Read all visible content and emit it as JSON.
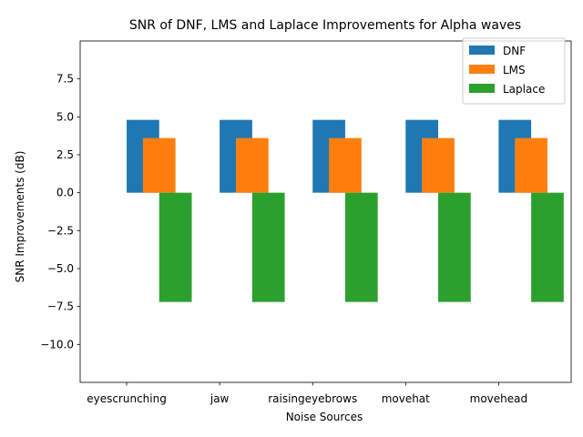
{
  "chart_data": {
    "type": "bar",
    "title": "SNR of DNF, LMS and Laplace Improvements for Alpha waves",
    "xlabel": "Noise Sources",
    "ylabel": "SNR Improvements (dB)",
    "categories": [
      "eyescrunching",
      "jaw",
      "raisingeyebrows",
      "movehat",
      "movehead"
    ],
    "series": [
      {
        "name": "DNF",
        "color": "#1f77b4",
        "values": [
          4.8,
          4.8,
          4.8,
          4.8,
          4.8
        ]
      },
      {
        "name": "LMS",
        "color": "#ff7f0e",
        "values": [
          3.6,
          3.6,
          3.6,
          3.6,
          3.6
        ]
      },
      {
        "name": "Laplace",
        "color": "#2ca02c",
        "values": [
          -7.2,
          -7.2,
          -7.2,
          -7.2,
          -7.2
        ]
      }
    ],
    "ylim": [
      -12.5,
      10.0
    ],
    "yticks": [
      -10.0,
      -7.5,
      -5.0,
      -2.5,
      0.0,
      2.5,
      5.0,
      7.5
    ],
    "ytick_labels": [
      "−10.0",
      "−7.5",
      "−5.0",
      "−2.5",
      "0.0",
      "2.5",
      "5.0",
      "7.5"
    ],
    "grid": false,
    "legend_position": "top-right"
  }
}
